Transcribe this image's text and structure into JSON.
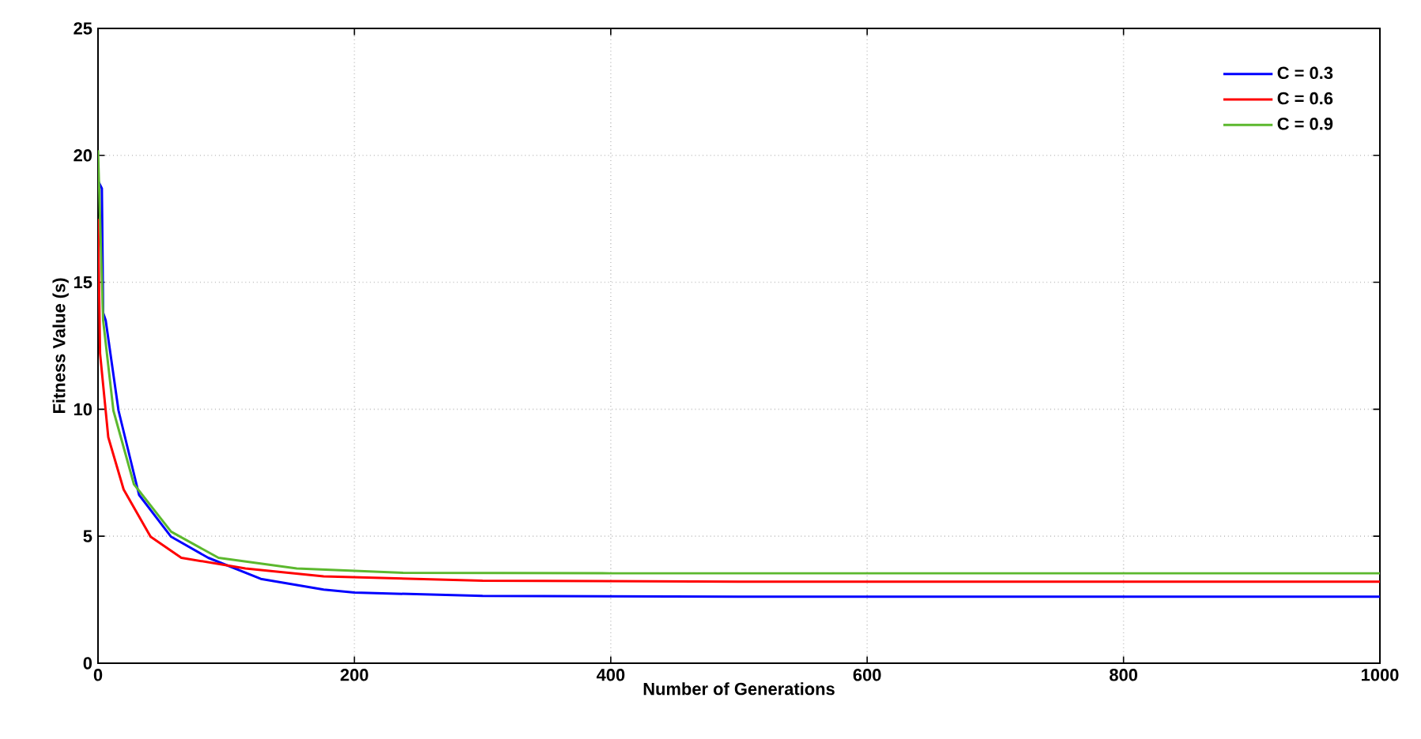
{
  "chart_data": {
    "type": "line",
    "xlabel": "Number of Generations",
    "ylabel": "Fitness Value (s)",
    "xlim": [
      0,
      1000
    ],
    "ylim": [
      0,
      25
    ],
    "xticks": [
      0,
      200,
      400,
      600,
      800,
      1000
    ],
    "yticks": [
      0,
      5,
      10,
      15,
      20,
      25
    ],
    "grid": true,
    "legend": "top right",
    "line_style": "solid",
    "marker": "none",
    "series": [
      {
        "name": "C = 0.3",
        "color": "#0000ff",
        "x": [
          0,
          3,
          4,
          6,
          16,
          32,
          57,
          86,
          127,
          176,
          200,
          300,
          500,
          1000
        ],
        "values": [
          19,
          18.7,
          13.8,
          13.5,
          9.95,
          6.63,
          4.98,
          4.15,
          3.32,
          2.9,
          2.78,
          2.65,
          2.62,
          2.62
        ]
      },
      {
        "name": "C = 0.6",
        "color": "#ff0000",
        "x": [
          0,
          1.6,
          8,
          20,
          41,
          65,
          115,
          176,
          300,
          500,
          1000
        ],
        "values": [
          17.5,
          12.2,
          8.9,
          6.84,
          4.98,
          4.15,
          3.73,
          3.42,
          3.25,
          3.21,
          3.21
        ]
      },
      {
        "name": "C = 0.9",
        "color": "#5cb82e",
        "x": [
          0,
          4,
          12,
          28,
          57,
          94,
          155,
          238,
          400,
          1000
        ],
        "values": [
          20.2,
          13.5,
          9.95,
          7.05,
          5.18,
          4.15,
          3.73,
          3.56,
          3.54,
          3.54
        ]
      }
    ]
  }
}
